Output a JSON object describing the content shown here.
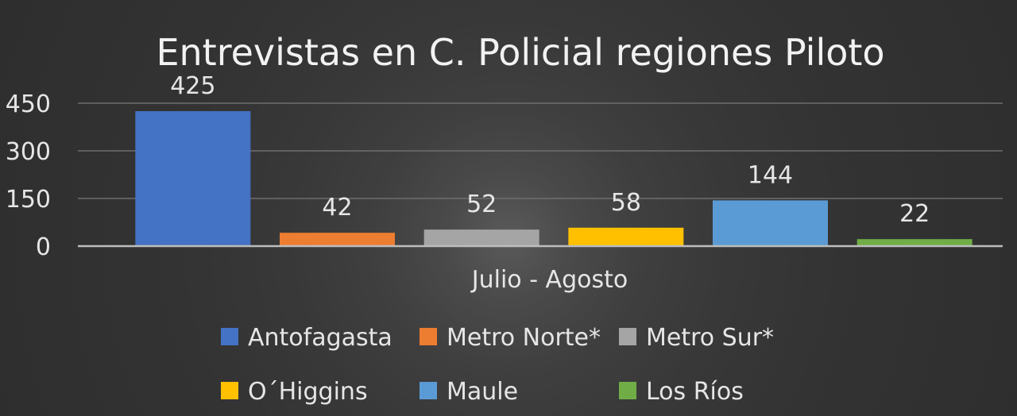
{
  "chart_data": {
    "type": "bar",
    "title": "Entrevistas en C. Policial regiones Piloto",
    "categories": [
      "Julio - Agosto"
    ],
    "ylim": [
      0,
      450
    ],
    "yticks": [
      0,
      150,
      300,
      450
    ],
    "grid": true,
    "legend_position": "bottom",
    "series": [
      {
        "name": "Antofagasta",
        "values": [
          425
        ],
        "color": "#4472c4"
      },
      {
        "name": "Metro Norte*",
        "values": [
          42
        ],
        "color": "#ed7d31"
      },
      {
        "name": "Metro Sur*",
        "values": [
          52
        ],
        "color": "#a5a5a5"
      },
      {
        "name": "O´Higgins",
        "values": [
          58
        ],
        "color": "#ffc000"
      },
      {
        "name": "Maule",
        "values": [
          144
        ],
        "color": "#5b9bd5"
      },
      {
        "name": "Los Ríos",
        "values": [
          22
        ],
        "color": "#70ad47"
      }
    ]
  }
}
